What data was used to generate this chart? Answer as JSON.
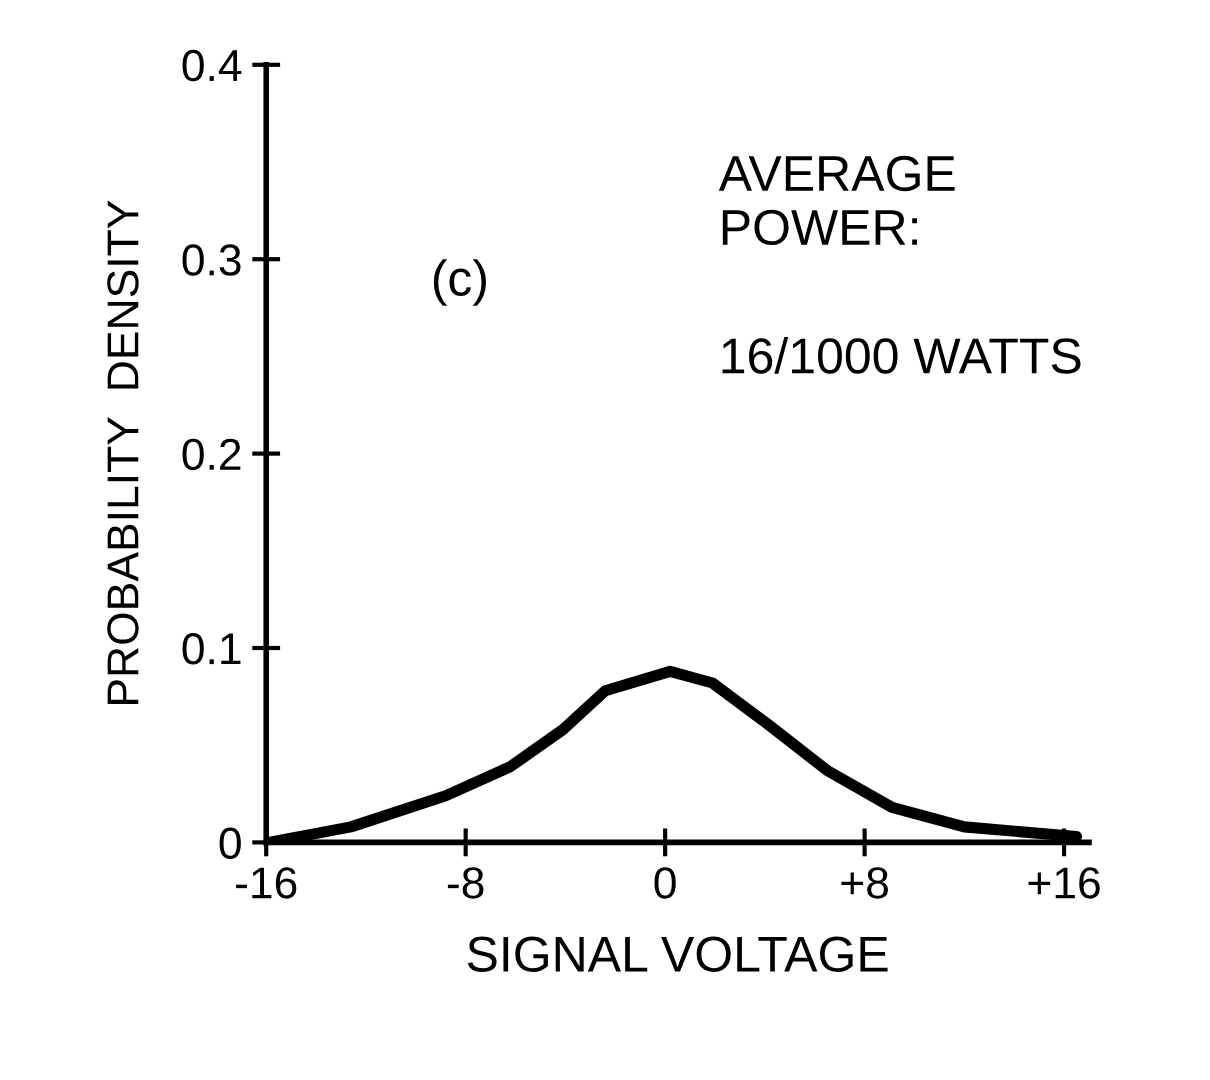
{
  "chart_data": {
    "type": "line",
    "xlabel": "SIGNAL VOLTAGE",
    "ylabel": "PROBABILITY  DENSITY",
    "annotations": [
      "(c)",
      "AVERAGE\nPOWER:",
      "16/1000 WATTS"
    ],
    "x": [
      -15.9,
      -12.6,
      -8.8,
      -6.2,
      -4.1,
      -2.4,
      0.2,
      1.9,
      4.2,
      6.5,
      9.1,
      12.0,
      16.5
    ],
    "series": [
      {
        "color": "#000000",
        "values": [
          0,
          0.008,
          0.024,
          0.039,
          0.058,
          0.078,
          0.088,
          0.082,
          0.06,
          0.037,
          0.018,
          0.008,
          0.003
        ]
      }
    ],
    "xlim": [
      -16,
      17
    ],
    "ylim": [
      0,
      0.4
    ],
    "xticks": [
      {
        "value": -16,
        "label": "-16"
      },
      {
        "value": -8,
        "label": "-8"
      },
      0,
      {
        "value": 8,
        "label": "+8"
      },
      {
        "value": 16,
        "label": "+16"
      }
    ],
    "yticks": [
      0,
      0.1,
      0.2,
      0.3,
      0.4
    ],
    "grid": false,
    "legend": false,
    "marker": "none",
    "line_style": "solid"
  }
}
